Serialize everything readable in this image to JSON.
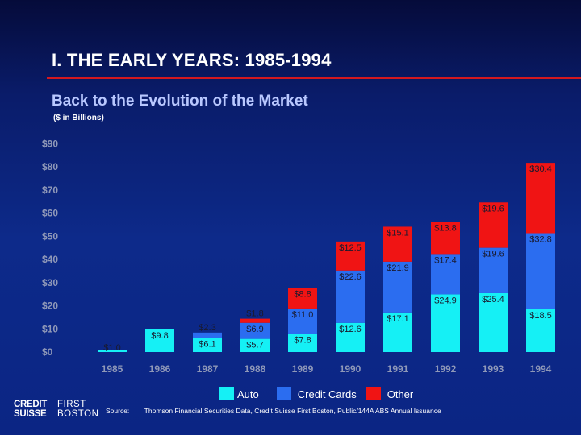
{
  "slide": {
    "title": "I.  THE EARLY YEARS:  1985-1994",
    "subtitle": "Back to the Evolution of the Market",
    "unit_note": "($ in Billions)",
    "source_label": "Source:",
    "source_text": "Thomson Financial Securities Data, Credit Suisse First Boston, Public/144A ABS Annual Issuance",
    "logo": {
      "left_line1": "CREDIT",
      "left_line2": "SUISSE",
      "right_line1": "FIRST",
      "right_line2": "BOSTON"
    }
  },
  "colors": {
    "auto": "#15f0f5",
    "credit_cards": "#2b6df0",
    "other": "#f01414",
    "rule": "#d4181f",
    "axis_text": "#8f98b8",
    "label_text": "#1a1a2e"
  },
  "chart_data": {
    "type": "bar",
    "stacked": true,
    "categories": [
      "1985",
      "1986",
      "1987",
      "1988",
      "1989",
      "1990",
      "1991",
      "1992",
      "1993",
      "1994"
    ],
    "series": [
      {
        "name": "Auto",
        "values": [
          1.0,
          9.8,
          6.1,
          5.7,
          7.8,
          12.6,
          17.1,
          24.9,
          25.4,
          18.5
        ]
      },
      {
        "name": "Credit Cards",
        "values": [
          0,
          0,
          2.3,
          6.9,
          11.0,
          22.6,
          21.9,
          17.4,
          19.6,
          32.8
        ]
      },
      {
        "name": "Other",
        "values": [
          0,
          0,
          0,
          1.8,
          8.8,
          12.5,
          15.1,
          13.8,
          19.6,
          30.4
        ]
      }
    ],
    "labels": {
      "Auto": [
        "$1.0",
        "$9.8",
        "$6.1",
        "$5.7",
        "$7.8",
        "$12.6",
        "$17.1",
        "$24.9",
        "$25.4",
        "$18.5"
      ],
      "Credit Cards": [
        "",
        "",
        "$2.3",
        "$6.9",
        "$11.0",
        "$22.6",
        "$21.9",
        "$17.4",
        "$19.6",
        "$32.8"
      ],
      "Other": [
        "",
        "",
        "",
        "$1.8",
        "$8.8",
        "$12.5",
        "$15.1",
        "$13.8",
        "$19.6",
        "$30.4"
      ]
    },
    "yticks": [
      "$0",
      "$10",
      "$20",
      "$30",
      "$40",
      "$50",
      "$60",
      "$70",
      "$80",
      "$90"
    ],
    "ylim": [
      0,
      90
    ],
    "legend_position": "bottom-center",
    "grid": false
  }
}
